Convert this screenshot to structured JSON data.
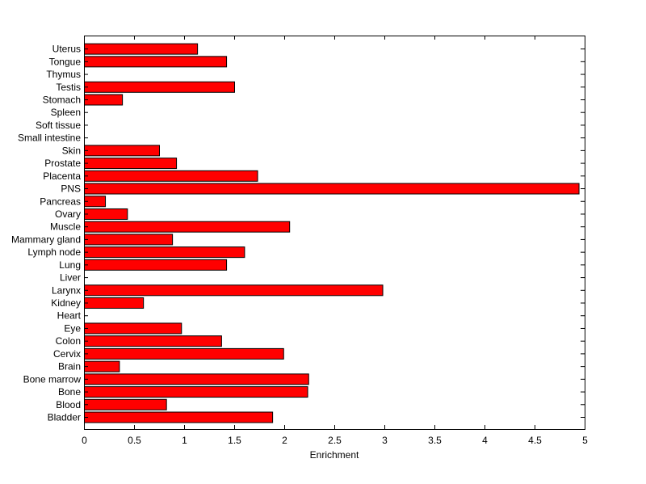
{
  "chart_data": {
    "type": "bar",
    "orientation": "horizontal",
    "xlabel": "Enrichment",
    "xlim": [
      0,
      5
    ],
    "xticks": [
      "0",
      "0.5",
      "1",
      "1.5",
      "2",
      "2.5",
      "3",
      "3.5",
      "4",
      "4.5",
      "5"
    ],
    "grid": false,
    "bar_color": "#ff0000",
    "bar_edge_color": "#000000",
    "categories": [
      "Bladder",
      "Blood",
      "Bone",
      "Bone marrow",
      "Brain",
      "Cervix",
      "Colon",
      "Eye",
      "Heart",
      "Kidney",
      "Larynx",
      "Liver",
      "Lung",
      "Lymph node",
      "Mammary gland",
      "Muscle",
      "Ovary",
      "Pancreas",
      "PNS",
      "Placenta",
      "Prostate",
      "Skin",
      "Small intestine",
      "Soft tissue",
      "Spleen",
      "Stomach",
      "Testis",
      "Thymus",
      "Tongue",
      "Uterus"
    ],
    "values": [
      1.88,
      0.82,
      2.23,
      2.24,
      0.35,
      1.99,
      1.37,
      0.97,
      0,
      0.59,
      2.98,
      0,
      1.42,
      1.6,
      0.88,
      2.05,
      0.43,
      0.21,
      4.94,
      1.73,
      0.92,
      0.75,
      0,
      0,
      0,
      0.38,
      1.5,
      0,
      1.42,
      1.13
    ]
  }
}
